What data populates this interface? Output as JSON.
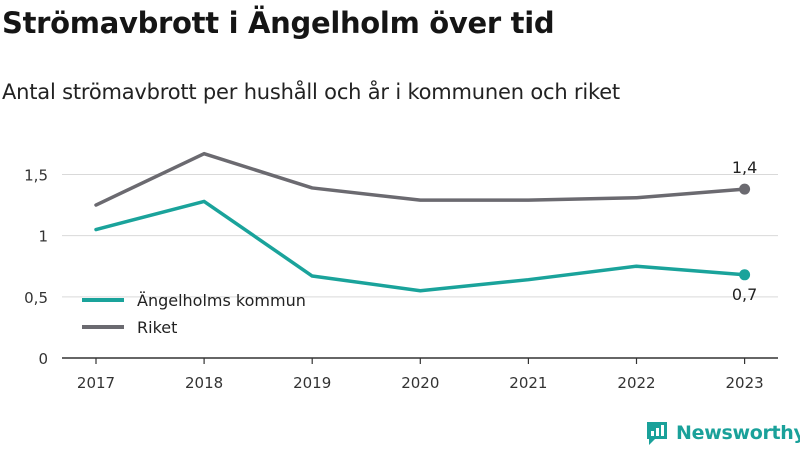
{
  "title": "Strömavbrott i Ängelholm över tid",
  "subtitle": "Antal strömavbrott per hushåll och år i kommunen och riket",
  "brand": "Newsworthy",
  "chart_data": {
    "type": "line",
    "x": [
      "2017",
      "2018",
      "2019",
      "2020",
      "2021",
      "2022",
      "2023"
    ],
    "ylim": [
      0,
      1.7
    ],
    "yticks": [
      0,
      0.5,
      1,
      1.5
    ],
    "ytick_labels": [
      "0",
      "0,5",
      "1",
      "1,5"
    ],
    "grid": true,
    "legend_position": "lower-left",
    "series": [
      {
        "name": "Ängelholms kommun",
        "color": "#1aa39b",
        "values": [
          1.05,
          1.28,
          0.67,
          0.55,
          0.64,
          0.75,
          0.68
        ],
        "end_label": "0,7"
      },
      {
        "name": "Riket",
        "color": "#6b6a70",
        "values": [
          1.25,
          1.67,
          1.39,
          1.29,
          1.29,
          1.31,
          1.38
        ],
        "end_label": "1,4"
      }
    ]
  }
}
